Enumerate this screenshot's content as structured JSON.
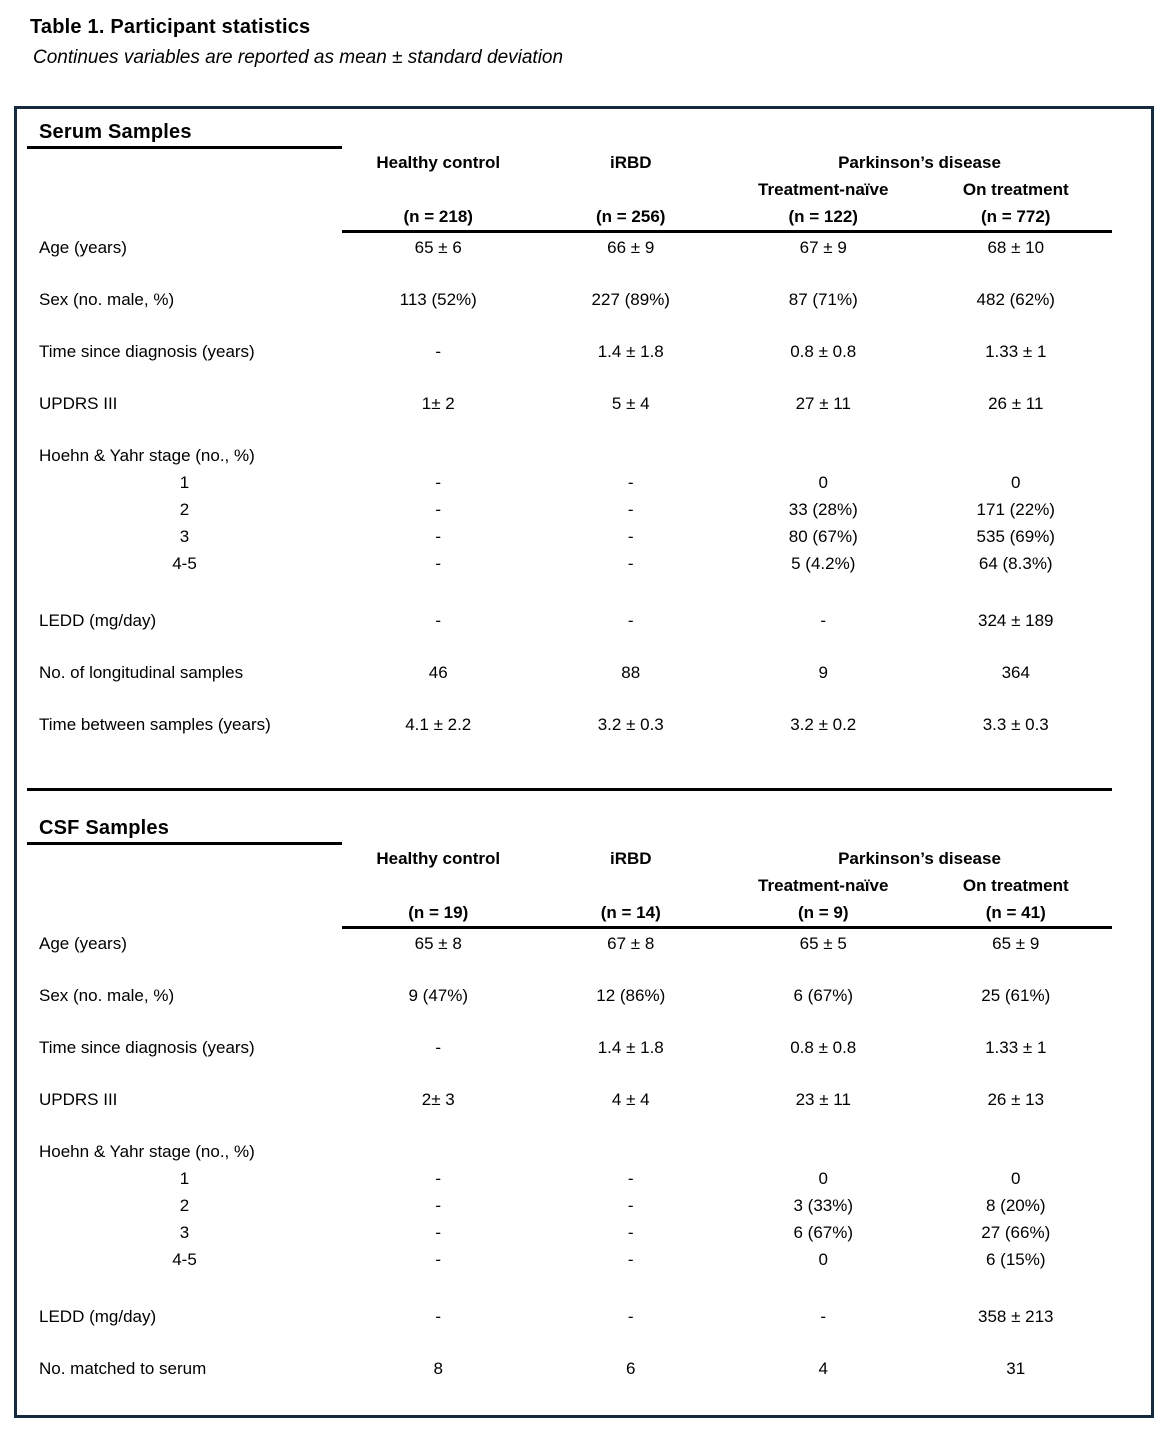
{
  "page": {
    "title": "Table 1. Participant statistics",
    "subtitle": "Continues variables are reported as mean ± standard deviation"
  },
  "header": {
    "col1": "Healthy control",
    "col2": "iRBD",
    "pd_group": "Parkinson’s disease",
    "col3": "Treatment-naïve",
    "col4": "On treatment"
  },
  "colors": {
    "table_border": "#162a3e",
    "rule": "#000000",
    "text": "#000000"
  },
  "sections": [
    {
      "name": "Serum Samples",
      "n_labels": [
        "(n = 218)",
        "(n = 256)",
        "(n = 122)",
        "(n = 772)"
      ],
      "rows": [
        {
          "type": "normal",
          "label": "Age (years)",
          "values": [
            "65 ± 6",
            "66 ± 9",
            "67 ± 9",
            "68 ± 10"
          ]
        },
        {
          "type": "normal",
          "label": "Sex (no. male, %)",
          "values": [
            "113 (52%)",
            "227 (89%)",
            "87 (71%)",
            "482 (62%)"
          ]
        },
        {
          "type": "normal",
          "label": "Time since diagnosis (years)",
          "values": [
            "-",
            "1.4 ± 1.8",
            "0.8 ± 0.8",
            "1.33 ± 1"
          ]
        },
        {
          "type": "normal",
          "label": "UPDRS III",
          "values": [
            "1± 2",
            "5 ± 4",
            "27 ± 11",
            "26 ± 11"
          ]
        },
        {
          "type": "group",
          "label": "Hoehn & Yahr stage (no., %)",
          "values": [
            "",
            "",
            "",
            ""
          ]
        },
        {
          "type": "sub",
          "label": "1",
          "values": [
            "-",
            "-",
            "0",
            "0"
          ]
        },
        {
          "type": "sub",
          "label": "2",
          "values": [
            "-",
            "-",
            "33 (28%)",
            "171 (22%)"
          ]
        },
        {
          "type": "sub",
          "label": "3",
          "values": [
            "-",
            "-",
            "80 (67%)",
            "535 (69%)"
          ]
        },
        {
          "type": "sub",
          "label": "4-5",
          "values": [
            "-",
            "-",
            "5 (4.2%)",
            "64 (8.3%)"
          ]
        },
        {
          "type": "gap",
          "label": "LEDD (mg/day)",
          "values": [
            "-",
            "-",
            "-",
            "324 ± 189"
          ]
        },
        {
          "type": "normal",
          "label": "No. of longitudinal samples",
          "values": [
            "46",
            "88",
            "9",
            "364"
          ]
        },
        {
          "type": "normal",
          "label": "Time between samples (years)",
          "values": [
            "4.1 ± 2.2",
            "3.2 ± 0.3",
            "3.2 ± 0.2",
            "3.3 ± 0.3"
          ]
        }
      ]
    },
    {
      "name": "CSF Samples",
      "n_labels": [
        "(n = 19)",
        "(n = 14)",
        "(n = 9)",
        "(n = 41)"
      ],
      "rows": [
        {
          "type": "normal",
          "label": "Age (years)",
          "values": [
            "65 ± 8",
            "67 ± 8",
            "65 ± 5",
            "65 ± 9"
          ]
        },
        {
          "type": "normal",
          "label": "Sex (no. male, %)",
          "values": [
            "9 (47%)",
            "12 (86%)",
            "6 (67%)",
            "25 (61%)"
          ]
        },
        {
          "type": "normal",
          "label": "Time since diagnosis (years)",
          "values": [
            "-",
            "1.4 ± 1.8",
            "0.8 ± 0.8",
            "1.33 ± 1"
          ]
        },
        {
          "type": "normal",
          "label": "UPDRS III",
          "values": [
            "2± 3",
            "4 ± 4",
            "23 ± 11",
            "26 ± 13"
          ]
        },
        {
          "type": "group",
          "label": "Hoehn & Yahr stage (no., %)",
          "values": [
            "",
            "",
            "",
            ""
          ]
        },
        {
          "type": "sub",
          "label": "1",
          "values": [
            "-",
            "-",
            "0",
            "0"
          ]
        },
        {
          "type": "sub",
          "label": "2",
          "values": [
            "-",
            "-",
            "3 (33%)",
            "8 (20%)"
          ]
        },
        {
          "type": "sub",
          "label": "3",
          "values": [
            "-",
            "-",
            "6 (67%)",
            "27 (66%)"
          ]
        },
        {
          "type": "sub",
          "label": "4-5",
          "values": [
            "-",
            "-",
            "0",
            "6 (15%)"
          ]
        },
        {
          "type": "gap",
          "label": "LEDD (mg/day)",
          "values": [
            "-",
            "-",
            "-",
            "358 ± 213"
          ]
        },
        {
          "type": "normal",
          "label": "No. matched to serum",
          "values": [
            "8",
            "6",
            "4",
            "31"
          ]
        }
      ]
    }
  ]
}
